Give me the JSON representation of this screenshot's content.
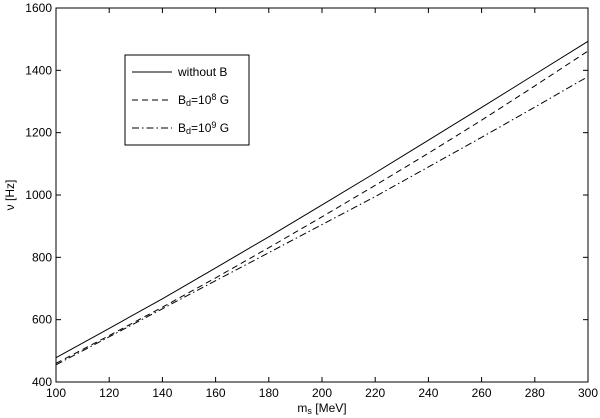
{
  "chart_data": {
    "type": "line",
    "x": [
      100,
      120,
      140,
      160,
      180,
      200,
      220,
      240,
      260,
      280,
      300
    ],
    "series": [
      {
        "name": "without B",
        "color": "#000000",
        "dash": "solid",
        "values": [
          478,
          572,
          667,
          766,
          866,
          968,
          1071,
          1176,
          1281,
          1387,
          1493
        ]
      },
      {
        "name": "B_d=10^8 G",
        "color": "#000000",
        "dash": "dashed",
        "values": [
          460,
          549,
          640,
          734,
          831,
          930,
          1031,
          1134,
          1240,
          1350,
          1462
        ]
      },
      {
        "name": "B_d=10^9 G",
        "color": "#000000",
        "dash": "dashdot",
        "values": [
          455,
          545,
          635,
          725,
          815,
          905,
          995,
          1090,
          1185,
          1282,
          1380
        ]
      }
    ],
    "xlabel": "m_s [MeV]",
    "ylabel": "ν [Hz]",
    "xlim": [
      100,
      300
    ],
    "xticks": [
      100,
      120,
      140,
      160,
      180,
      200,
      220,
      240,
      260,
      280,
      300
    ],
    "ylim": [
      400,
      1600
    ],
    "yticks": [
      400,
      600,
      800,
      1000,
      1200,
      1400,
      1600
    ],
    "grid": false,
    "legend": "upper left"
  }
}
